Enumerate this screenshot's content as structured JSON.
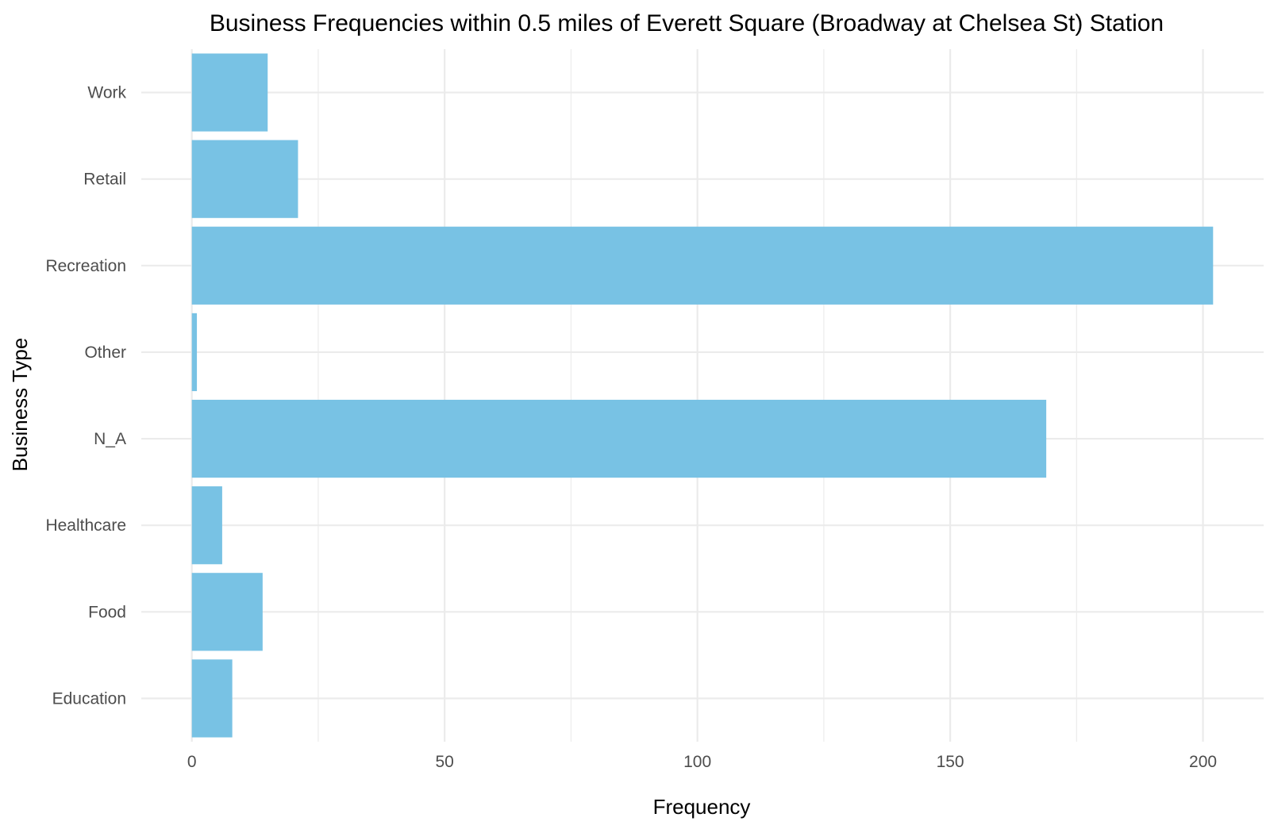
{
  "chart_data": {
    "type": "bar",
    "orientation": "horizontal",
    "title": "Business Frequencies within 0.5 miles of Everett Square (Broadway at Chelsea St) Station",
    "xlabel": "Frequency",
    "ylabel": "Business Type",
    "categories": [
      "Education",
      "Food",
      "Healthcare",
      "N_A",
      "Other",
      "Recreation",
      "Retail",
      "Work"
    ],
    "values": [
      8,
      14,
      6,
      169,
      1,
      202,
      21,
      15
    ],
    "xticks": [
      0,
      50,
      100,
      150,
      200
    ],
    "xlim": [
      -10,
      212
    ],
    "grid": true,
    "legend": "none",
    "bar_color": "#78c2e4",
    "background": "#ffffff"
  }
}
